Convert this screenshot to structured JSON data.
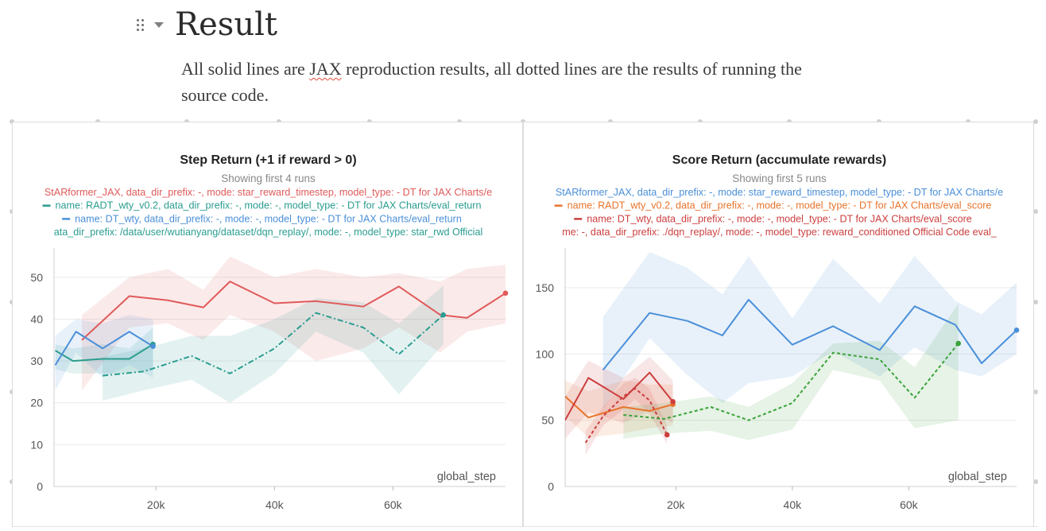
{
  "section": {
    "title": "Result"
  },
  "intro": {
    "before": "All solid lines are ",
    "link": "JAX",
    "after": " reproduction results, all dotted lines are the results of running the",
    "line2": "source code."
  },
  "colors": {
    "red": "#e05a5a",
    "teal": "#2a9d8f",
    "blue": "#4a8fd9",
    "orange": "#e8742c",
    "darkred": "#cc3e3e",
    "green": "#3aa23a",
    "axis": "#555555",
    "grid": "#ebebeb"
  },
  "chart_data": [
    {
      "type": "line",
      "title": "Step Return (+1 if reward > 0)",
      "subtitle": "Showing first 4 runs",
      "legend": [
        {
          "label": "StARformer_JAX, data_dir_prefix: -, mode: star_reward_timestep, model_type: - DT for JAX Charts/e",
          "color": "#e05a5a",
          "style": "solid",
          "marker": false
        },
        {
          "label": "name: RADT_wty_v0.2, data_dir_prefix: -, mode: -, model_type: - DT for JAX Charts/eval_return",
          "color": "#2a9d8f",
          "style": "solid",
          "marker": true
        },
        {
          "label": "name: DT_wty, data_dir_prefix: -, mode: -, model_type: - DT for JAX Charts/eval_return",
          "color": "#4a8fd9",
          "style": "solid",
          "marker": true
        },
        {
          "label": "ata_dir_prefix: /data/user/wutianyang/dataset/dqn_replay/, mode: -, model_type: star_rwd Official",
          "color": "#2a9d8f",
          "style": "solid",
          "marker": false
        }
      ],
      "xlabel": "global_step",
      "ylabel": "",
      "xlim": [
        2800,
        79000
      ],
      "ylim": [
        0,
        57
      ],
      "yticks": [
        0,
        10,
        20,
        30,
        40,
        50
      ],
      "xticks": [
        20000,
        40000,
        60000
      ],
      "xtick_labels": [
        "20k",
        "40k",
        "60k"
      ],
      "grid": true,
      "series": [
        {
          "color": "#e05a5a",
          "dash": "",
          "endDot": true,
          "x": [
            7500,
            15500,
            22000,
            28000,
            32500,
            40000,
            47000,
            55000,
            61000,
            68000,
            72500,
            79000
          ],
          "y": [
            35,
            45.5,
            44.5,
            42.8,
            49,
            43.8,
            44.3,
            43,
            47.8,
            41,
            40.3,
            46.2
          ],
          "band_hi": [
            41,
            50,
            52,
            47,
            55,
            50,
            52,
            50,
            51,
            49,
            52,
            53
          ],
          "band_lo": [
            23,
            38,
            39,
            35,
            41,
            37,
            30,
            33,
            38,
            32,
            37,
            39
          ]
        },
        {
          "color": "#2a9d8f",
          "dash": "",
          "endDot": true,
          "x": [
            3000,
            6000,
            11000,
            15500,
            19500
          ],
          "y": [
            32.5,
            30,
            30.5,
            30.5,
            34
          ],
          "band_hi": [
            34,
            33,
            34,
            33,
            38
          ],
          "band_lo": [
            28,
            27,
            27,
            27,
            28
          ]
        },
        {
          "color": "#4a8fd9",
          "dash": "",
          "endDot": true,
          "x": [
            3000,
            6500,
            11000,
            15500,
            19500
          ],
          "y": [
            29,
            37,
            33,
            37,
            33.5
          ],
          "band_hi": [
            36,
            40,
            39,
            41,
            40
          ],
          "band_lo": [
            23,
            32,
            26,
            29,
            26
          ]
        },
        {
          "color": "#2a9d8f",
          "dash": "7 3 2 3",
          "endDot": true,
          "x": [
            11000,
            18000,
            26000,
            32500,
            40000,
            47000,
            55000,
            61000,
            68500
          ],
          "y": [
            26.5,
            27.5,
            31.2,
            27,
            33,
            41.5,
            38,
            31.6,
            41
          ],
          "band_hi": [
            31,
            33,
            36,
            36,
            40,
            45,
            44,
            39,
            48
          ],
          "band_lo": [
            20.5,
            23,
            25.5,
            20,
            27,
            37,
            32,
            22,
            34
          ]
        }
      ]
    },
    {
      "type": "line",
      "title": "Score Return (accumulate rewards)",
      "subtitle": "Showing first 5 runs",
      "legend": [
        {
          "label": "StARformer_JAX, data_dir_prefix: -, mode: star_reward_timestep, model_type: - DT for JAX Charts/e",
          "color": "#4a8fd9",
          "style": "solid",
          "marker": false
        },
        {
          "label": "name: RADT_wty_v0.2, data_dir_prefix: -, mode: -, model_type: - DT for JAX Charts/eval_score",
          "color": "#e8742c",
          "style": "solid",
          "marker": true
        },
        {
          "label": "name: DT_wty, data_dir_prefix: -, mode: -, model_type: - DT for JAX Charts/eval_score",
          "color": "#cc3e3e",
          "style": "solid",
          "marker": true
        },
        {
          "label": "me: -, data_dir_prefix: ./dqn_replay/, mode: -, model_type: reward_conditioned Official Code eval_",
          "color": "#cc3e3e",
          "style": "solid",
          "marker": false
        }
      ],
      "xlabel": "global_step",
      "ylabel": "",
      "xlim": [
        1000,
        78500
      ],
      "ylim": [
        0,
        180
      ],
      "yticks": [
        0,
        50,
        100,
        150
      ],
      "xticks": [
        20000,
        40000,
        60000
      ],
      "xtick_labels": [
        "20k",
        "40k",
        "60k"
      ],
      "grid": true,
      "series": [
        {
          "color": "#4a8fd9",
          "dash": "",
          "endDot": true,
          "x": [
            7500,
            15500,
            22000,
            28000,
            32500,
            40000,
            47000,
            55000,
            61000,
            68000,
            72500,
            78500
          ],
          "y": [
            88,
            131,
            125,
            114,
            141,
            107,
            121,
            103,
            136,
            122,
            93,
            118
          ],
          "band_hi": [
            128,
            177,
            165,
            145,
            174,
            127,
            172,
            138,
            174,
            140,
            130,
            154
          ],
          "band_lo": [
            58,
            112,
            84,
            63,
            78,
            83,
            102,
            83,
            105,
            88,
            83,
            100
          ]
        },
        {
          "color": "#e8742c",
          "dash": "",
          "endDot": true,
          "x": [
            1000,
            5000,
            11000,
            15500,
            19500
          ],
          "y": [
            68,
            52,
            60,
            57,
            62
          ],
          "band_hi": [
            80,
            72,
            80,
            77,
            77
          ],
          "band_lo": [
            53,
            37,
            40,
            44,
            46
          ]
        },
        {
          "color": "#cc3e3e",
          "dash": "",
          "endDot": true,
          "x": [
            1000,
            5000,
            11000,
            15500,
            19500
          ],
          "y": [
            50,
            82,
            66,
            86,
            64
          ],
          "band_hi": [
            68,
            95,
            82,
            98,
            80
          ],
          "band_lo": [
            36,
            56,
            48,
            57,
            48
          ]
        },
        {
          "color": "#cc3e3e",
          "dash": "4 3",
          "endDot": true,
          "x": [
            4500,
            7500,
            11000,
            13000,
            15500,
            18500
          ],
          "y": [
            33,
            53,
            68,
            74,
            65,
            39
          ],
          "band_hi": [
            42,
            60,
            78,
            82,
            74,
            46
          ],
          "band_lo": [
            24,
            46,
            58,
            66,
            55,
            32
          ]
        },
        {
          "color": "#3aa23a",
          "dash": "4 3",
          "endDot": true,
          "x": [
            11000,
            18000,
            26000,
            32500,
            40000,
            47000,
            55000,
            61000,
            68500
          ],
          "y": [
            54,
            51,
            60,
            50,
            63,
            101,
            96,
            67,
            108
          ],
          "band_hi": [
            60,
            63,
            68,
            60,
            78,
            108,
            110,
            90,
            138
          ],
          "band_lo": [
            36,
            40,
            42,
            35,
            43,
            88,
            80,
            44,
            50
          ]
        }
      ]
    }
  ]
}
